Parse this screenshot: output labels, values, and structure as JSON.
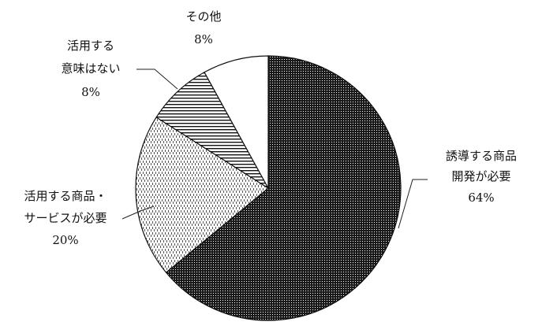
{
  "chart_data": {
    "type": "pie",
    "title": "",
    "start": "12 o'clock",
    "direction": "clockwise",
    "slices": [
      {
        "label_lines": [
          "誘導する商品",
          "開発が必要"
        ],
        "pct_label": "64%",
        "value": 64,
        "pattern": "dense-dots"
      },
      {
        "label_lines": [
          "活用する商品・",
          "サービスが必要"
        ],
        "pct_label": "20%",
        "value": 20,
        "pattern": "light-dashes"
      },
      {
        "label_lines": [
          "活用する",
          "意味はない"
        ],
        "pct_label": "8%",
        "value": 8,
        "pattern": "horizontal-stripes"
      },
      {
        "label_lines": [
          "その他"
        ],
        "pct_label": "8%",
        "value": 8,
        "pattern": "plain-white"
      }
    ]
  }
}
